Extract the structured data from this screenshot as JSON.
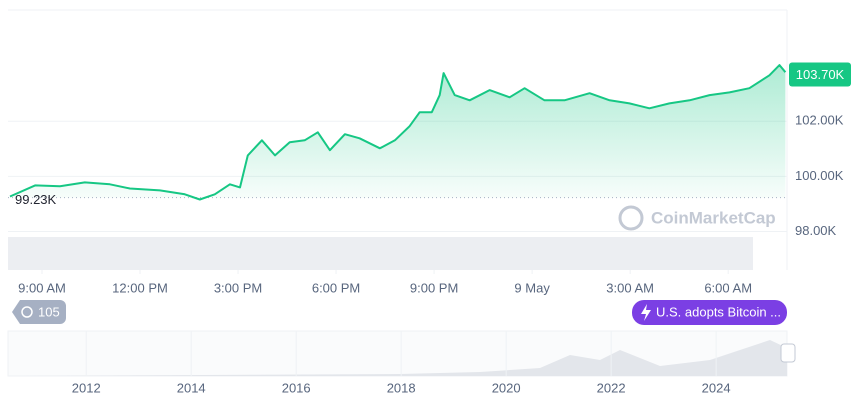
{
  "chart_data": {
    "type": "area",
    "color": "#16c784",
    "x": [
      8.02,
      8.79,
      9.55,
      10.31,
      11.08,
      11.69,
      12.61,
      13.37,
      13.83,
      14.29,
      14.75,
      15.06,
      15.3,
      15.73,
      16.13,
      16.58,
      17.04,
      17.44,
      17.81,
      18.27,
      18.72,
      19.34,
      19.8,
      20.25,
      20.56,
      20.93,
      21.17,
      21.29,
      21.63,
      22.09,
      22.7,
      23.31,
      23.77,
      24.38,
      24.99,
      25.76,
      26.37,
      26.98,
      27.59,
      28.2,
      28.82,
      29.43,
      30.04,
      30.65,
      31.26,
      31.57,
      31.75
    ],
    "values": [
      99.27,
      99.67,
      99.64,
      99.78,
      99.71,
      99.56,
      99.49,
      99.35,
      99.16,
      99.35,
      99.71,
      99.6,
      100.76,
      101.31,
      100.76,
      101.24,
      101.31,
      101.6,
      100.95,
      101.53,
      101.38,
      101.02,
      101.31,
      101.82,
      102.33,
      102.33,
      102.95,
      103.75,
      102.95,
      102.76,
      103.13,
      102.87,
      103.2,
      102.76,
      102.76,
      103.02,
      102.76,
      102.65,
      102.47,
      102.65,
      102.76,
      102.95,
      103.05,
      103.2,
      103.67,
      104.04,
      103.78
    ],
    "xlim": [
      7.96,
      31.8
    ],
    "xticks": [
      {
        "value": 9,
        "label": "9:00 AM"
      },
      {
        "value": 12,
        "label": "12:00 PM"
      },
      {
        "value": 15,
        "label": "3:00 PM"
      },
      {
        "value": 18,
        "label": "6:00 PM"
      },
      {
        "value": 21,
        "label": "9:00 PM"
      },
      {
        "value": 24,
        "label": "9 May"
      },
      {
        "value": 27,
        "label": "3:00 AM"
      },
      {
        "value": 30,
        "label": "6:00 AM"
      }
    ],
    "ylim": [
      96.6,
      106.04
    ],
    "yticks": [
      {
        "value": 98,
        "label": "98.00K"
      },
      {
        "value": 100,
        "label": "100.00K"
      },
      {
        "value": 102,
        "label": "102.00K"
      }
    ],
    "baseline": {
      "value": 99.23,
      "label": "99.23K"
    },
    "last_price": {
      "value": 103.7,
      "label": "103.70K"
    },
    "watermark": "CoinMarketCap",
    "event_count": 105,
    "event_label": "U.S. adopts Bitcoin ...",
    "navigator": {
      "xlim": [
        2010.51,
        2025.35
      ],
      "xticks": [
        2012,
        2014,
        2016,
        2018,
        2020,
        2022,
        2024
      ]
    }
  }
}
